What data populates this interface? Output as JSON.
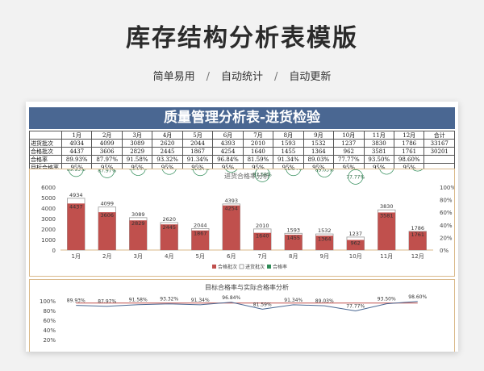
{
  "header": {
    "title": "库存结构分析表模版",
    "tags": [
      "简单易用",
      "自动统计",
      "自动更新"
    ]
  },
  "sheet": {
    "banner": "质量管理分析表-进货检验",
    "table": {
      "months": [
        "1月",
        "2月",
        "3月",
        "4月",
        "5月",
        "6月",
        "7月",
        "8月",
        "9月",
        "10月",
        "11月",
        "12月",
        "合计"
      ],
      "rows": [
        {
          "label": "进货批次",
          "values": [
            "4934",
            "4099",
            "3089",
            "2620",
            "2044",
            "4393",
            "2010",
            "1593",
            "1532",
            "1237",
            "3830",
            "1786",
            "33167"
          ]
        },
        {
          "label": "合格批次",
          "values": [
            "4437",
            "3606",
            "2829",
            "2445",
            "1867",
            "4254",
            "1640",
            "1455",
            "1364",
            "962",
            "3581",
            "1761",
            "30201"
          ]
        },
        {
          "label": "合格率",
          "values": [
            "89.93%",
            "87.97%",
            "91.58%",
            "93.32%",
            "91.34%",
            "96.84%",
            "81.59%",
            "91.34%",
            "89.03%",
            "77.77%",
            "93.50%",
            "98.60%",
            ""
          ]
        },
        {
          "label": "目标合格率",
          "values": [
            "95%",
            "95%",
            "95%",
            "95%",
            "95%",
            "95%",
            "95%",
            "95%",
            "95%",
            "95%",
            "95%",
            "95%",
            ""
          ]
        }
      ]
    }
  },
  "chart_data": [
    {
      "type": "bar",
      "title": "进货合格率分析",
      "categories": [
        "1月",
        "2月",
        "3月",
        "4月",
        "5月",
        "6月",
        "7月",
        "8月",
        "9月",
        "10月",
        "11月",
        "12月"
      ],
      "series": [
        {
          "name": "合格批次",
          "values": [
            4437,
            3606,
            2829,
            2445,
            1867,
            4254,
            1640,
            1455,
            1364,
            962,
            3581,
            1761
          ],
          "color": "#c0504d"
        },
        {
          "name": "进货批次",
          "values": [
            4934,
            4099,
            3089,
            2620,
            2044,
            4393,
            2010,
            1593,
            1532,
            1237,
            3830,
            1786
          ],
          "color": "#ffffff"
        },
        {
          "name": "合格率",
          "values": [
            89.93,
            87.97,
            91.58,
            93.32,
            91.34,
            96.84,
            81.59,
            91.34,
            89.03,
            77.77,
            93.5,
            98.6
          ],
          "color": "#2e8b57"
        }
      ],
      "bar_labels_top": [
        "4934",
        "4099",
        "3089",
        "2620",
        "2044",
        "4393",
        "2010",
        "1593",
        "1532",
        "1237",
        "3830",
        "1786"
      ],
      "bar_labels_mid": [
        "4437",
        "3606",
        "2829",
        "2445",
        "1867",
        "4254",
        "1640",
        "1455",
        "1364",
        "962",
        "3581",
        "1761"
      ],
      "rate_labels": [
        "89.93%",
        "87.97%",
        "91.58%",
        "93.32%",
        "91.34%",
        "96.84%",
        "81.59%",
        "91.34%",
        "89.03%",
        "77.77%",
        "93.50%",
        "98.60%"
      ],
      "y_ticks": [
        "0",
        "1000",
        "2000",
        "3000",
        "4000",
        "5000",
        "6000"
      ],
      "y2_ticks": [
        "0%",
        "20%",
        "40%",
        "60%",
        "80%",
        "100%"
      ],
      "ylim": [
        0,
        6000
      ],
      "y2lim": [
        0,
        100
      ],
      "legend": [
        "合格批次",
        "进货批次",
        "合格率"
      ],
      "legend_position": "bottom"
    },
    {
      "type": "line",
      "title": "目标合格率与实际合格率分析",
      "categories": [
        "1月",
        "2月",
        "3月",
        "4月",
        "5月",
        "6月",
        "7月",
        "8月",
        "9月",
        "10月",
        "11月",
        "12月"
      ],
      "series": [
        {
          "name": "目标合格率",
          "values": [
            95,
            95,
            95,
            95,
            95,
            95,
            95,
            95,
            95,
            95,
            95,
            95
          ],
          "color": "#c0504d"
        },
        {
          "name": "实际合格率",
          "values": [
            89.93,
            87.97,
            91.58,
            93.32,
            91.34,
            96.84,
            81.59,
            91.34,
            89.03,
            77.77,
            93.5,
            98.6
          ],
          "color": "#4a6792"
        }
      ],
      "rate_labels": [
        "89.93%",
        "87.97%",
        "91.58%",
        "93.32%",
        "91.34%",
        "96.84%",
        "81.59%",
        "91.34%",
        "89.03%",
        "77.77%",
        "93.50%",
        "98.60%"
      ],
      "y_ticks": [
        "100%",
        "80%",
        "60%",
        "40%",
        "20%"
      ],
      "ylim": [
        0,
        100
      ]
    }
  ]
}
